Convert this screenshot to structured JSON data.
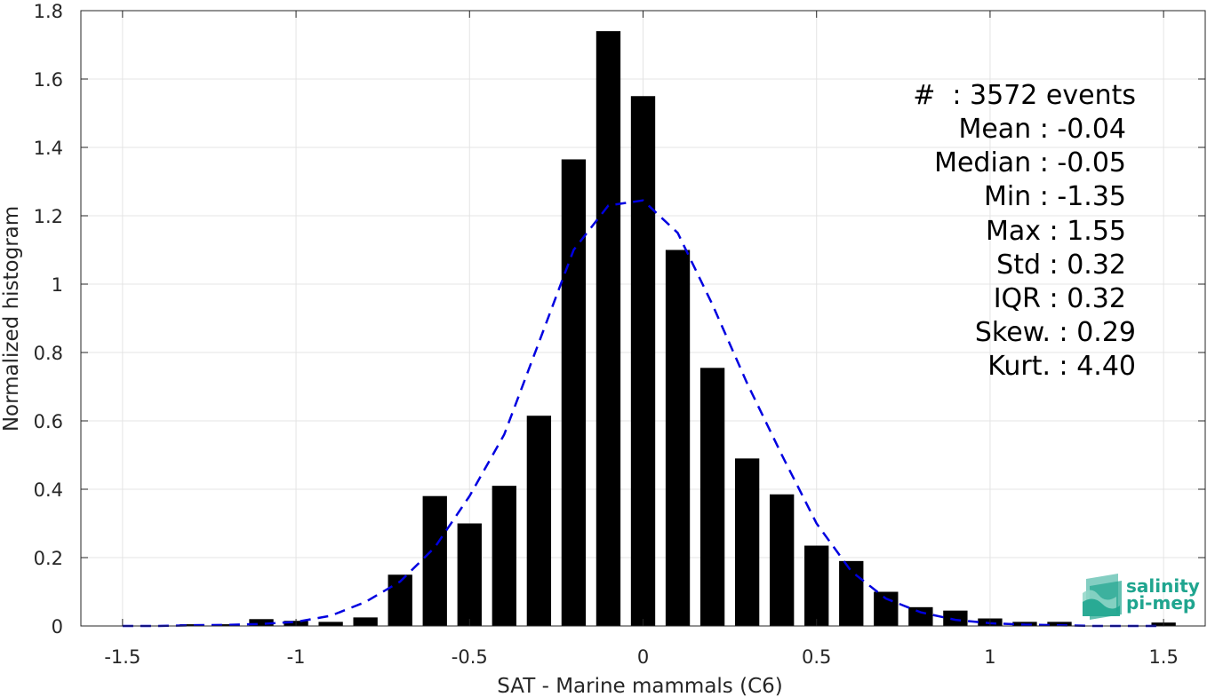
{
  "chart_data": {
    "type": "bar",
    "xlabel": "SAT - Marine mammals (C6)",
    "ylabel": "Normalized histogram",
    "xlim": [
      -1.62,
      1.62
    ],
    "ylim": [
      0,
      1.8
    ],
    "xticks": [
      -1.5,
      -1,
      -0.5,
      0,
      0.5,
      1,
      1.5
    ],
    "xtick_labels": [
      "-1.5",
      "-1",
      "-0.5",
      "0",
      "0.5",
      "1",
      "1.5"
    ],
    "yticks": [
      0,
      0.2,
      0.4,
      0.6,
      0.8,
      1,
      1.2,
      1.4,
      1.6,
      1.8
    ],
    "ytick_labels": [
      "0",
      "0.2",
      "0.4",
      "0.6",
      "0.8",
      "1",
      "1.2",
      "1.4",
      "1.6",
      "1.8"
    ],
    "grid": true,
    "bar_color": "#000000",
    "bar_width": 0.07,
    "bins": [
      -1.3,
      -1.2,
      -1.1,
      -1.0,
      -0.9,
      -0.8,
      -0.7,
      -0.6,
      -0.5,
      -0.4,
      -0.3,
      -0.2,
      -0.1,
      0.0,
      0.1,
      0.2,
      0.3,
      0.4,
      0.5,
      0.6,
      0.7,
      0.8,
      0.9,
      1.0,
      1.1,
      1.2,
      1.5
    ],
    "values": [
      0.005,
      0.005,
      0.02,
      0.015,
      0.012,
      0.025,
      0.15,
      0.38,
      0.3,
      0.41,
      0.615,
      1.365,
      1.74,
      1.55,
      1.1,
      0.755,
      0.49,
      0.385,
      0.235,
      0.19,
      0.1,
      0.055,
      0.045,
      0.022,
      0.012,
      0.012,
      0.01
    ],
    "fit_curve": {
      "color": "#0000e0",
      "style": "dashed",
      "x": [
        -1.5,
        -1.4,
        -1.3,
        -1.2,
        -1.1,
        -1.0,
        -0.9,
        -0.8,
        -0.7,
        -0.6,
        -0.5,
        -0.4,
        -0.3,
        -0.2,
        -0.1,
        0.0,
        0.1,
        0.2,
        0.3,
        0.4,
        0.5,
        0.6,
        0.7,
        0.8,
        0.9,
        1.0,
        1.1,
        1.2,
        1.3,
        1.4,
        1.5
      ],
      "y": [
        0.0,
        0.0,
        0.002,
        0.003,
        0.006,
        0.012,
        0.03,
        0.07,
        0.13,
        0.23,
        0.38,
        0.56,
        0.83,
        1.1,
        1.23,
        1.245,
        1.15,
        0.94,
        0.71,
        0.5,
        0.3,
        0.16,
        0.08,
        0.04,
        0.018,
        0.008,
        0.004,
        0.002,
        0.0,
        0.0,
        0.0
      ]
    },
    "stats": [
      "#  : 3572 events",
      "Mean : -0.04",
      "Median : -0.05",
      "Min : -1.35",
      "Max : 1.55",
      "Std : 0.32",
      "IQR : 0.32",
      "Skew. : 0.29",
      "Kurt. : 4.40"
    ]
  },
  "logo": {
    "line1": "salinity",
    "line2": "pi-mep",
    "color": "#1fa58f"
  }
}
